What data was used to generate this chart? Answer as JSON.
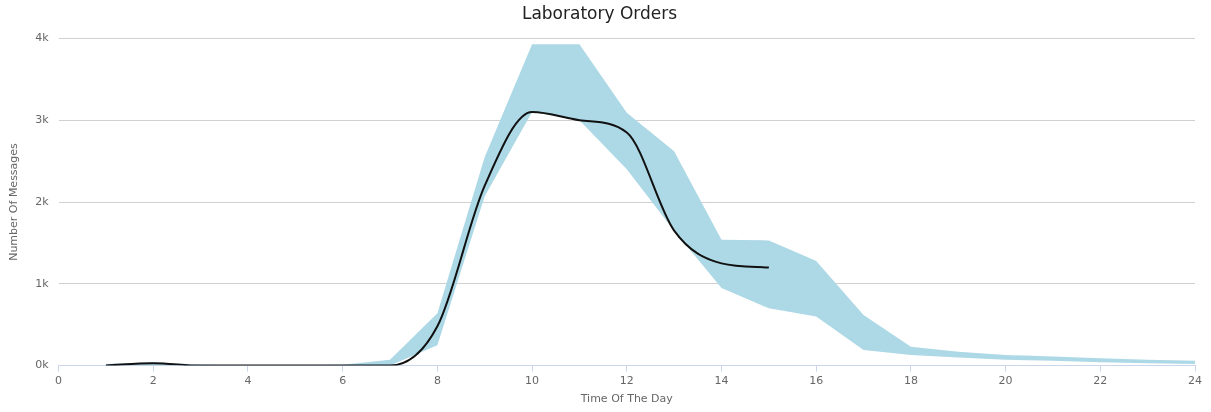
{
  "chart_data": {
    "type": "line",
    "title": "Laboratory Orders",
    "xlabel": "Time Of The Day",
    "ylabel": "Number Of Messages",
    "x": [
      1,
      2,
      3,
      4,
      5,
      6,
      7,
      8,
      9,
      10,
      11,
      12,
      13,
      14,
      15,
      16,
      17,
      18,
      19,
      20,
      21,
      22,
      23,
      24
    ],
    "series": [
      {
        "color": "#111111",
        "values": [
          0,
          30,
          0,
          0,
          0,
          0,
          0,
          480,
          2200,
          3100,
          3000,
          2850,
          1650,
          1250,
          1200,
          null,
          null,
          null,
          null,
          null,
          null,
          null,
          null,
          null
        ],
        "lower": [
          0,
          0,
          0,
          0,
          0,
          0,
          0,
          250,
          2070,
          3100,
          3000,
          2400,
          1650,
          950,
          700,
          600,
          190,
          130,
          100,
          70,
          60,
          40,
          30,
          20
        ],
        "upper": [
          20,
          40,
          10,
          5,
          5,
          10,
          70,
          640,
          2550,
          3930,
          3930,
          3090,
          2620,
          1540,
          1530,
          1280,
          620,
          230,
          170,
          130,
          110,
          90,
          70,
          60
        ]
      }
    ],
    "xlim": [
      0,
      24
    ],
    "xticks": [
      0,
      2,
      4,
      6,
      8,
      10,
      12,
      14,
      16,
      18,
      20,
      22,
      24
    ],
    "ylim": [
      0,
      4000
    ],
    "yticks": [
      {
        "value": 0,
        "label": "0k"
      },
      {
        "value": 1000,
        "label": "1k"
      },
      {
        "value": 2000,
        "label": "2k"
      },
      {
        "value": 3000,
        "label": "3k"
      },
      {
        "value": 4000,
        "label": "4k"
      }
    ],
    "grid": "y",
    "legend": false,
    "marker": "none",
    "line_style": "solid"
  }
}
